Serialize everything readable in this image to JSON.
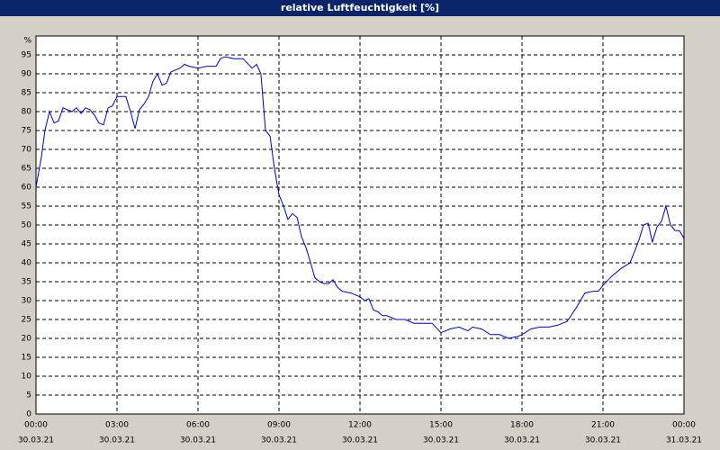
{
  "chart_data": {
    "type": "line",
    "title": "relative Luftfeuchtigkeit [%]",
    "y_label": "%",
    "xlim": [
      0,
      24
    ],
    "ylim": [
      0,
      100
    ],
    "xticks": [
      {
        "value": 0,
        "label": "00:00",
        "date": "30.03.21"
      },
      {
        "value": 3,
        "label": "03:00",
        "date": "30.03.21"
      },
      {
        "value": 6,
        "label": "06:00",
        "date": "30.03.21"
      },
      {
        "value": 9,
        "label": "09:00",
        "date": "30.03.21"
      },
      {
        "value": 12,
        "label": "12:00",
        "date": "30.03.21"
      },
      {
        "value": 15,
        "label": "15:00",
        "date": "30.03.21"
      },
      {
        "value": 18,
        "label": "18:00",
        "date": "30.03.21"
      },
      {
        "value": 21,
        "label": "21:00",
        "date": "30.03.21"
      },
      {
        "value": 24,
        "label": "00:00",
        "date": "31.03.21"
      }
    ],
    "yticks": [
      0,
      5,
      10,
      15,
      20,
      25,
      30,
      35,
      40,
      45,
      50,
      55,
      60,
      65,
      70,
      75,
      80,
      85,
      90,
      95
    ],
    "grid": true,
    "series": [
      {
        "color": "#0000cc",
        "x": [
          0,
          0.2,
          0.33,
          0.5,
          0.67,
          0.83,
          1.0,
          1.33,
          1.5,
          1.67,
          1.83,
          2.0,
          2.17,
          2.33,
          2.5,
          2.67,
          2.83,
          3.0,
          3.33,
          3.5,
          3.67,
          3.83,
          4.0,
          4.17,
          4.33,
          4.5,
          4.67,
          4.83,
          5.0,
          5.33,
          5.5,
          5.67,
          6.0,
          6.33,
          6.67,
          6.83,
          7.0,
          7.33,
          7.67,
          8.0,
          8.17,
          8.33,
          8.5,
          8.67,
          8.83,
          9.0,
          9.17,
          9.33,
          9.5,
          9.67,
          9.83,
          10.0,
          10.17,
          10.33,
          10.5,
          10.67,
          10.83,
          11.0,
          11.17,
          11.33,
          11.67,
          12.0,
          12.17,
          12.33,
          12.5,
          12.67,
          12.83,
          13.0,
          13.33,
          13.67,
          14.0,
          14.33,
          14.67,
          15.0,
          15.33,
          15.67,
          16.0,
          16.17,
          16.5,
          16.83,
          17.17,
          17.5,
          17.83,
          18.0,
          18.33,
          18.67,
          19.0,
          19.33,
          19.67,
          20.0,
          20.33,
          20.67,
          20.83,
          21.0,
          21.33,
          21.67,
          22.0,
          22.17,
          22.33,
          22.5,
          22.67,
          22.83,
          23.0,
          23.17,
          23.33,
          23.5,
          23.67,
          23.83,
          24.0
        ],
        "values": [
          60,
          68,
          75,
          80,
          77,
          77.5,
          81,
          80,
          81,
          79.5,
          81,
          80.5,
          79,
          77,
          76.5,
          81,
          81.5,
          84,
          84,
          80,
          75.5,
          80.5,
          82,
          84,
          88,
          90,
          87,
          87.5,
          90.5,
          91.5,
          92.5,
          92,
          91.5,
          92,
          92,
          94,
          94.5,
          94,
          94,
          91.5,
          92.5,
          90,
          75,
          73.5,
          65,
          58,
          55,
          51.5,
          53,
          52,
          47,
          44,
          40,
          36,
          35,
          34.5,
          34.5,
          35.5,
          33.5,
          32.5,
          32,
          31,
          30,
          30.5,
          27.5,
          27,
          26,
          26,
          25,
          25,
          24,
          24,
          24,
          21.5,
          22.5,
          23,
          22,
          23,
          22.5,
          21,
          21,
          20,
          20.5,
          21,
          22.5,
          23,
          23,
          23.5,
          24.5,
          28,
          32,
          32.5,
          32.5,
          34,
          36.5,
          38.5,
          40,
          43,
          46,
          50,
          50.5,
          45.5,
          49.5,
          51,
          55,
          50,
          48.5,
          48.5,
          46.5
        ]
      }
    ]
  }
}
